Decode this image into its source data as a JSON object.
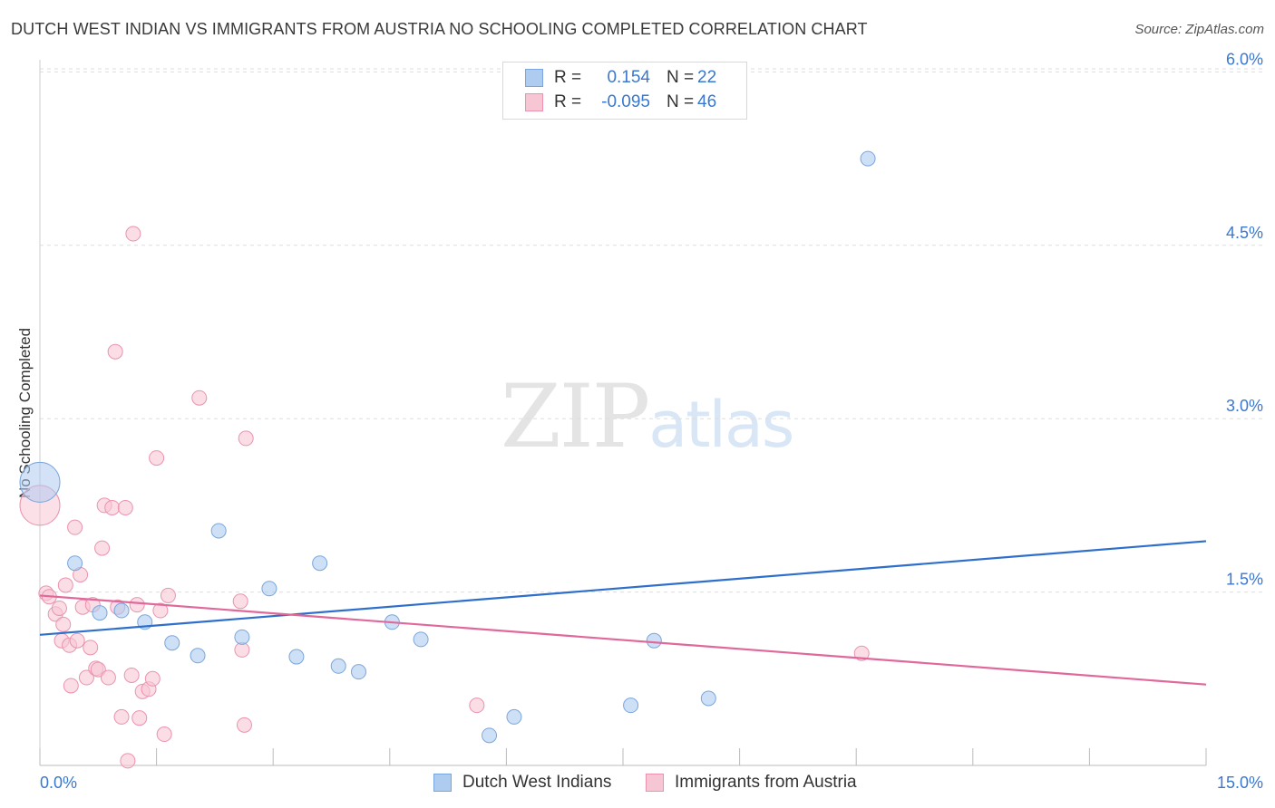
{
  "header": {
    "title": "DUTCH WEST INDIAN VS IMMIGRANTS FROM AUSTRIA NO SCHOOLING COMPLETED CORRELATION CHART",
    "source": "Source: ZipAtlas.com"
  },
  "watermark": {
    "zip": "ZIP",
    "atlas": "atlas"
  },
  "legend": {
    "rows": [
      {
        "r_label": "R =",
        "r_value": "0.154",
        "n_label": "N =",
        "n_value": "22",
        "color": "#aecbf0",
        "border": "#7aa6dd"
      },
      {
        "r_label": "R =",
        "r_value": "-0.095",
        "n_label": "N =",
        "n_value": "46",
        "color": "#f7c6d4",
        "border": "#eb93ae"
      }
    ]
  },
  "colors": {
    "blue_fill": "#aecbf0",
    "blue_stroke": "#7aa6dd",
    "blue_line": "#2f6fcc",
    "pink_fill": "#f7c6d4",
    "pink_stroke": "#eb93ae",
    "pink_line": "#e0689a",
    "tick_label": "#3a78d0",
    "grid": "#dddddd"
  },
  "chart_data": {
    "type": "scatter",
    "title": "DUTCH WEST INDIAN VS IMMIGRANTS FROM AUSTRIA NO SCHOOLING COMPLETED CORRELATION CHART",
    "xlabel": "",
    "ylabel": "No Schooling Completed",
    "xlim": [
      0,
      15
    ],
    "ylim": [
      0,
      6.2
    ],
    "x_tick_labels": [
      "0.0%",
      "15.0%"
    ],
    "y_ticks": [
      1.5,
      3.0,
      4.5,
      6.0
    ],
    "y_tick_labels": [
      "1.5%",
      "3.0%",
      "4.5%",
      "6.0%"
    ],
    "grid": true,
    "legend_position": "top-center",
    "series": [
      {
        "name": "Dutch West Indians",
        "r": 0.154,
        "n": 22,
        "trend": {
          "x": [
            0,
            15
          ],
          "y": [
            1.13,
            1.94
          ]
        },
        "points": [
          {
            "x": 0.0,
            "y": 2.45,
            "big": true
          },
          {
            "x": 0.45,
            "y": 1.75
          },
          {
            "x": 0.77,
            "y": 1.32
          },
          {
            "x": 1.05,
            "y": 1.34
          },
          {
            "x": 1.35,
            "y": 1.24
          },
          {
            "x": 1.7,
            "y": 1.06
          },
          {
            "x": 2.03,
            "y": 0.95
          },
          {
            "x": 2.3,
            "y": 2.03
          },
          {
            "x": 2.6,
            "y": 1.11
          },
          {
            "x": 2.95,
            "y": 1.53
          },
          {
            "x": 3.3,
            "y": 0.94
          },
          {
            "x": 3.6,
            "y": 1.75
          },
          {
            "x": 3.84,
            "y": 0.86
          },
          {
            "x": 4.1,
            "y": 0.81
          },
          {
            "x": 4.53,
            "y": 1.24
          },
          {
            "x": 4.9,
            "y": 1.09
          },
          {
            "x": 5.78,
            "y": 0.26
          },
          {
            "x": 6.1,
            "y": 0.42
          },
          {
            "x": 7.6,
            "y": 0.52
          },
          {
            "x": 7.9,
            "y": 1.08
          },
          {
            "x": 8.6,
            "y": 0.58
          },
          {
            "x": 10.65,
            "y": 5.25
          }
        ]
      },
      {
        "name": "Immigrants from Austria",
        "r": -0.095,
        "n": 46,
        "trend": {
          "x": [
            0,
            15
          ],
          "y": [
            1.47,
            0.7
          ]
        },
        "points": [
          {
            "x": 0.0,
            "y": 2.25,
            "big": true
          },
          {
            "x": 0.08,
            "y": 1.49
          },
          {
            "x": 0.12,
            "y": 1.46
          },
          {
            "x": 0.2,
            "y": 1.31
          },
          {
            "x": 0.25,
            "y": 1.36
          },
          {
            "x": 0.28,
            "y": 1.08
          },
          {
            "x": 0.3,
            "y": 1.22
          },
          {
            "x": 0.33,
            "y": 1.56
          },
          {
            "x": 0.38,
            "y": 1.04
          },
          {
            "x": 0.4,
            "y": 0.69
          },
          {
            "x": 0.45,
            "y": 2.06
          },
          {
            "x": 0.48,
            "y": 1.08
          },
          {
            "x": 0.52,
            "y": 1.65
          },
          {
            "x": 0.55,
            "y": 1.37
          },
          {
            "x": 0.6,
            "y": 0.76
          },
          {
            "x": 0.65,
            "y": 1.02
          },
          {
            "x": 0.68,
            "y": 1.39
          },
          {
            "x": 0.72,
            "y": 0.84
          },
          {
            "x": 0.75,
            "y": 0.83
          },
          {
            "x": 0.8,
            "y": 1.88
          },
          {
            "x": 0.83,
            "y": 2.25
          },
          {
            "x": 0.88,
            "y": 0.76
          },
          {
            "x": 0.93,
            "y": 2.23
          },
          {
            "x": 0.97,
            "y": 3.58
          },
          {
            "x": 1.0,
            "y": 1.37
          },
          {
            "x": 1.05,
            "y": 0.42
          },
          {
            "x": 1.1,
            "y": 2.23
          },
          {
            "x": 1.13,
            "y": 0.04
          },
          {
            "x": 1.18,
            "y": 0.78
          },
          {
            "x": 1.2,
            "y": 4.6
          },
          {
            "x": 1.25,
            "y": 1.39
          },
          {
            "x": 1.28,
            "y": 0.41
          },
          {
            "x": 1.32,
            "y": 0.64
          },
          {
            "x": 1.4,
            "y": 0.66
          },
          {
            "x": 1.45,
            "y": 0.75
          },
          {
            "x": 1.5,
            "y": 2.66
          },
          {
            "x": 1.55,
            "y": 1.34
          },
          {
            "x": 1.6,
            "y": 0.27
          },
          {
            "x": 1.65,
            "y": 1.47
          },
          {
            "x": 2.05,
            "y": 3.18
          },
          {
            "x": 2.58,
            "y": 1.42
          },
          {
            "x": 2.6,
            "y": 1.0
          },
          {
            "x": 2.63,
            "y": 0.35
          },
          {
            "x": 2.65,
            "y": 2.83
          },
          {
            "x": 5.62,
            "y": 0.52
          },
          {
            "x": 10.57,
            "y": 0.97
          }
        ]
      }
    ]
  }
}
